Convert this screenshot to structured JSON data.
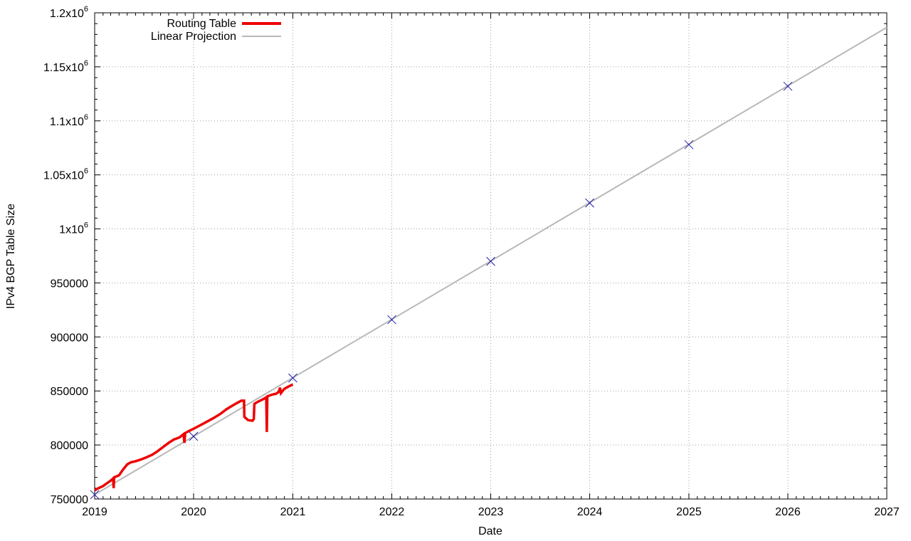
{
  "chart_data": {
    "type": "line",
    "title": "",
    "xlabel": "Date",
    "ylabel": "IPv4 BGP Table Size",
    "x_axis": {
      "type": "time",
      "range": [
        "2019-01-01",
        "2027-01-01"
      ],
      "ticks": [
        "2019",
        "2020",
        "2021",
        "2022",
        "2023",
        "2024",
        "2025",
        "2026",
        "2027"
      ]
    },
    "y_axis": {
      "range": [
        750000,
        1200000
      ],
      "ticks": [
        {
          "value": 750000,
          "mant": "750000",
          "exp": ""
        },
        {
          "value": 800000,
          "mant": "800000",
          "exp": ""
        },
        {
          "value": 850000,
          "mant": "850000",
          "exp": ""
        },
        {
          "value": 900000,
          "mant": "900000",
          "exp": ""
        },
        {
          "value": 950000,
          "mant": "950000",
          "exp": ""
        },
        {
          "value": 1000000,
          "mant": "1x10",
          "exp": "6"
        },
        {
          "value": 1050000,
          "mant": "1.05x10",
          "exp": "6"
        },
        {
          "value": 1100000,
          "mant": "1.1x10",
          "exp": "6"
        },
        {
          "value": 1150000,
          "mant": "1.15x10",
          "exp": "6"
        },
        {
          "value": 1200000,
          "mant": "1.2x10",
          "exp": "6"
        }
      ]
    },
    "grid": true,
    "legend": {
      "position": "top-left"
    },
    "colors": {
      "routing": "#ee0000",
      "projection": "#b8b8b8",
      "marker": "#1a1aa8",
      "grid": "#a0a0a0"
    },
    "series": [
      {
        "name": "Routing Table",
        "kind": "line",
        "points": [
          [
            "2019-01-01",
            758000
          ],
          [
            "2019-01-15",
            760000
          ],
          [
            "2019-02-01",
            762000
          ],
          [
            "2019-02-15",
            764500
          ],
          [
            "2019-03-01",
            767000
          ],
          [
            "2019-03-10",
            769000
          ],
          [
            "2019-03-12",
            760000
          ],
          [
            "2019-03-14",
            770000
          ],
          [
            "2019-04-01",
            772000
          ],
          [
            "2019-04-15",
            777000
          ],
          [
            "2019-05-01",
            782000
          ],
          [
            "2019-05-15",
            784000
          ],
          [
            "2019-06-01",
            785000
          ],
          [
            "2019-06-20",
            786500
          ],
          [
            "2019-07-10",
            788500
          ],
          [
            "2019-08-01",
            791000
          ],
          [
            "2019-08-20",
            794000
          ],
          [
            "2019-09-10",
            798000
          ],
          [
            "2019-10-01",
            802000
          ],
          [
            "2019-10-20",
            805000
          ],
          [
            "2019-11-10",
            807000
          ],
          [
            "2019-11-25",
            810000
          ],
          [
            "2019-11-28",
            802000
          ],
          [
            "2019-12-01",
            811000
          ],
          [
            "2019-12-15",
            813000
          ],
          [
            "2020-01-01",
            815000
          ],
          [
            "2020-01-20",
            817500
          ],
          [
            "2020-02-15",
            821000
          ],
          [
            "2020-03-15",
            825000
          ],
          [
            "2020-04-10",
            829000
          ],
          [
            "2020-05-01",
            833000
          ],
          [
            "2020-05-20",
            836000
          ],
          [
            "2020-06-10",
            839000
          ],
          [
            "2020-06-25",
            841000
          ],
          [
            "2020-07-05",
            841000
          ],
          [
            "2020-07-06",
            826000
          ],
          [
            "2020-07-20",
            823000
          ],
          [
            "2020-08-05",
            822500
          ],
          [
            "2020-08-10",
            824000
          ],
          [
            "2020-08-12",
            838000
          ],
          [
            "2020-08-25",
            840000
          ],
          [
            "2020-09-10",
            842000
          ],
          [
            "2020-09-25",
            844000
          ],
          [
            "2020-09-27",
            812000
          ],
          [
            "2020-09-29",
            845000
          ],
          [
            "2020-10-15",
            846500
          ],
          [
            "2020-11-01",
            847500
          ],
          [
            "2020-11-10",
            849000
          ],
          [
            "2020-11-15",
            853000
          ],
          [
            "2020-11-18",
            848000
          ],
          [
            "2020-12-01",
            852000
          ],
          [
            "2020-12-15",
            854000
          ],
          [
            "2021-01-01",
            856000
          ]
        ]
      },
      {
        "name": "Linear Projection",
        "kind": "line",
        "points": [
          [
            "2019-01-01",
            754000
          ],
          [
            "2027-01-01",
            1186500
          ]
        ]
      },
      {
        "name": "",
        "kind": "markers",
        "points": [
          [
            "2019-01-01",
            754000
          ],
          [
            "2020-01-01",
            808000
          ],
          [
            "2021-01-01",
            862000
          ],
          [
            "2022-01-01",
            916000
          ],
          [
            "2023-01-01",
            970000
          ],
          [
            "2024-01-01",
            1024000
          ],
          [
            "2025-01-01",
            1078000
          ],
          [
            "2026-01-01",
            1132000
          ]
        ]
      }
    ]
  }
}
